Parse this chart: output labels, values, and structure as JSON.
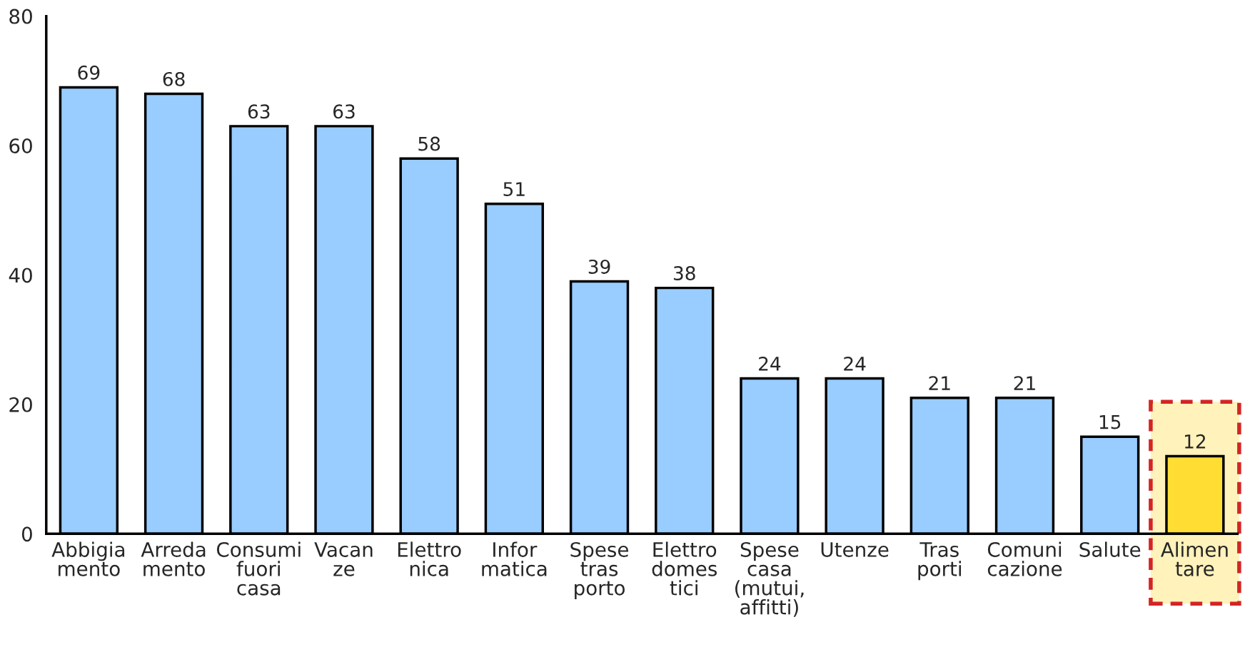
{
  "chart_data": {
    "type": "bar",
    "categories": [
      "Abbigia\nmento",
      "Arreda\nmento",
      "Consumi\nfuori\ncasa",
      "Vacan\nze",
      "Elettro\nnica",
      "Infor\nmatica",
      "Spese\ntras\nporto",
      "Elettro\ndomes\ntici",
      "Spese\ncasa\n(mutui,\naffitti)",
      "Utenze",
      "Tras\nporti",
      "Comuni\ncazione",
      "Salute",
      "Alimen\ntare"
    ],
    "values": [
      69,
      68,
      63,
      63,
      58,
      51,
      39,
      38,
      24,
      24,
      21,
      21,
      15,
      12
    ],
    "colors": [
      "#99ccff",
      "#99ccff",
      "#99ccff",
      "#99ccff",
      "#99ccff",
      "#99ccff",
      "#99ccff",
      "#99ccff",
      "#99ccff",
      "#99ccff",
      "#99ccff",
      "#99ccff",
      "#99ccff",
      "#ffdd33"
    ],
    "ylim": [
      0,
      80
    ],
    "yticks": [
      0,
      20,
      40,
      60,
      80
    ],
    "data_labels": true,
    "bands": [
      {
        "axis": "x",
        "from": "Alimen\ntare",
        "to": "Alimen\ntare",
        "color": "#fff0b0"
      }
    ]
  }
}
